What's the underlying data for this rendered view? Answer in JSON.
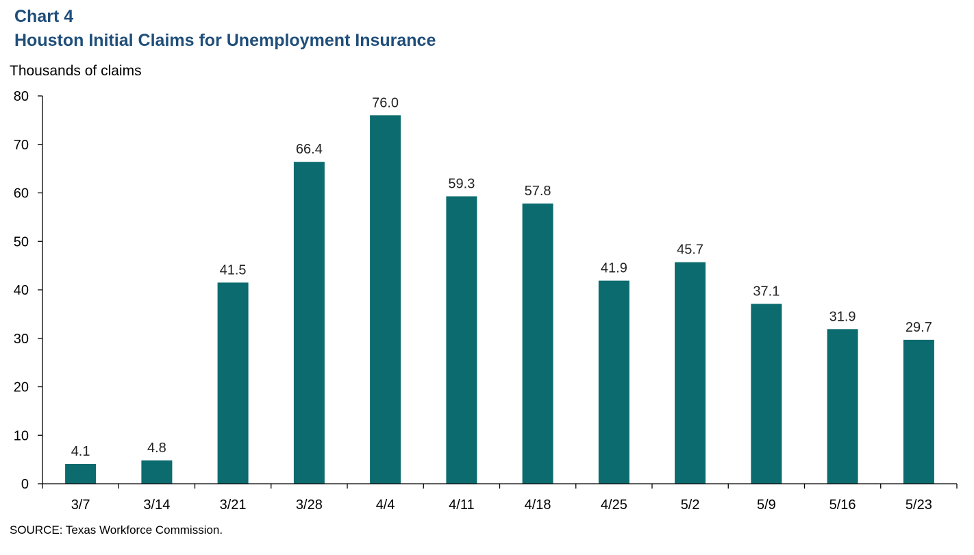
{
  "header": {
    "chart_number": "Chart 4",
    "title": "Houston Initial Claims for Unemployment Insurance",
    "y_unit": "Thousands of claims"
  },
  "footer": {
    "source": "SOURCE:  Texas Workforce Commission."
  },
  "colors": {
    "bar": "#0b6b6e",
    "title": "#1f4e79",
    "axis": "#000000"
  },
  "chart_data": {
    "type": "bar",
    "title": "Houston Initial Claims for Unemployment Insurance",
    "xlabel": "",
    "ylabel": "Thousands of claims",
    "categories": [
      "3/7",
      "3/14",
      "3/21",
      "3/28",
      "4/4",
      "4/11",
      "4/18",
      "4/25",
      "5/2",
      "5/9",
      "5/16",
      "5/23"
    ],
    "values": [
      4.1,
      4.8,
      41.5,
      66.4,
      76.0,
      59.3,
      57.8,
      41.9,
      45.7,
      37.1,
      31.9,
      29.7
    ],
    "data_labels": [
      "4.1",
      "4.8",
      "41.5",
      "66.4",
      "76.0",
      "59.3",
      "57.8",
      "41.9",
      "45.7",
      "37.1",
      "31.9",
      "29.7"
    ],
    "ylim": [
      0,
      80
    ],
    "yticks": [
      0,
      10,
      20,
      30,
      40,
      50,
      60,
      70,
      80
    ],
    "grid": false,
    "legend": "none"
  }
}
